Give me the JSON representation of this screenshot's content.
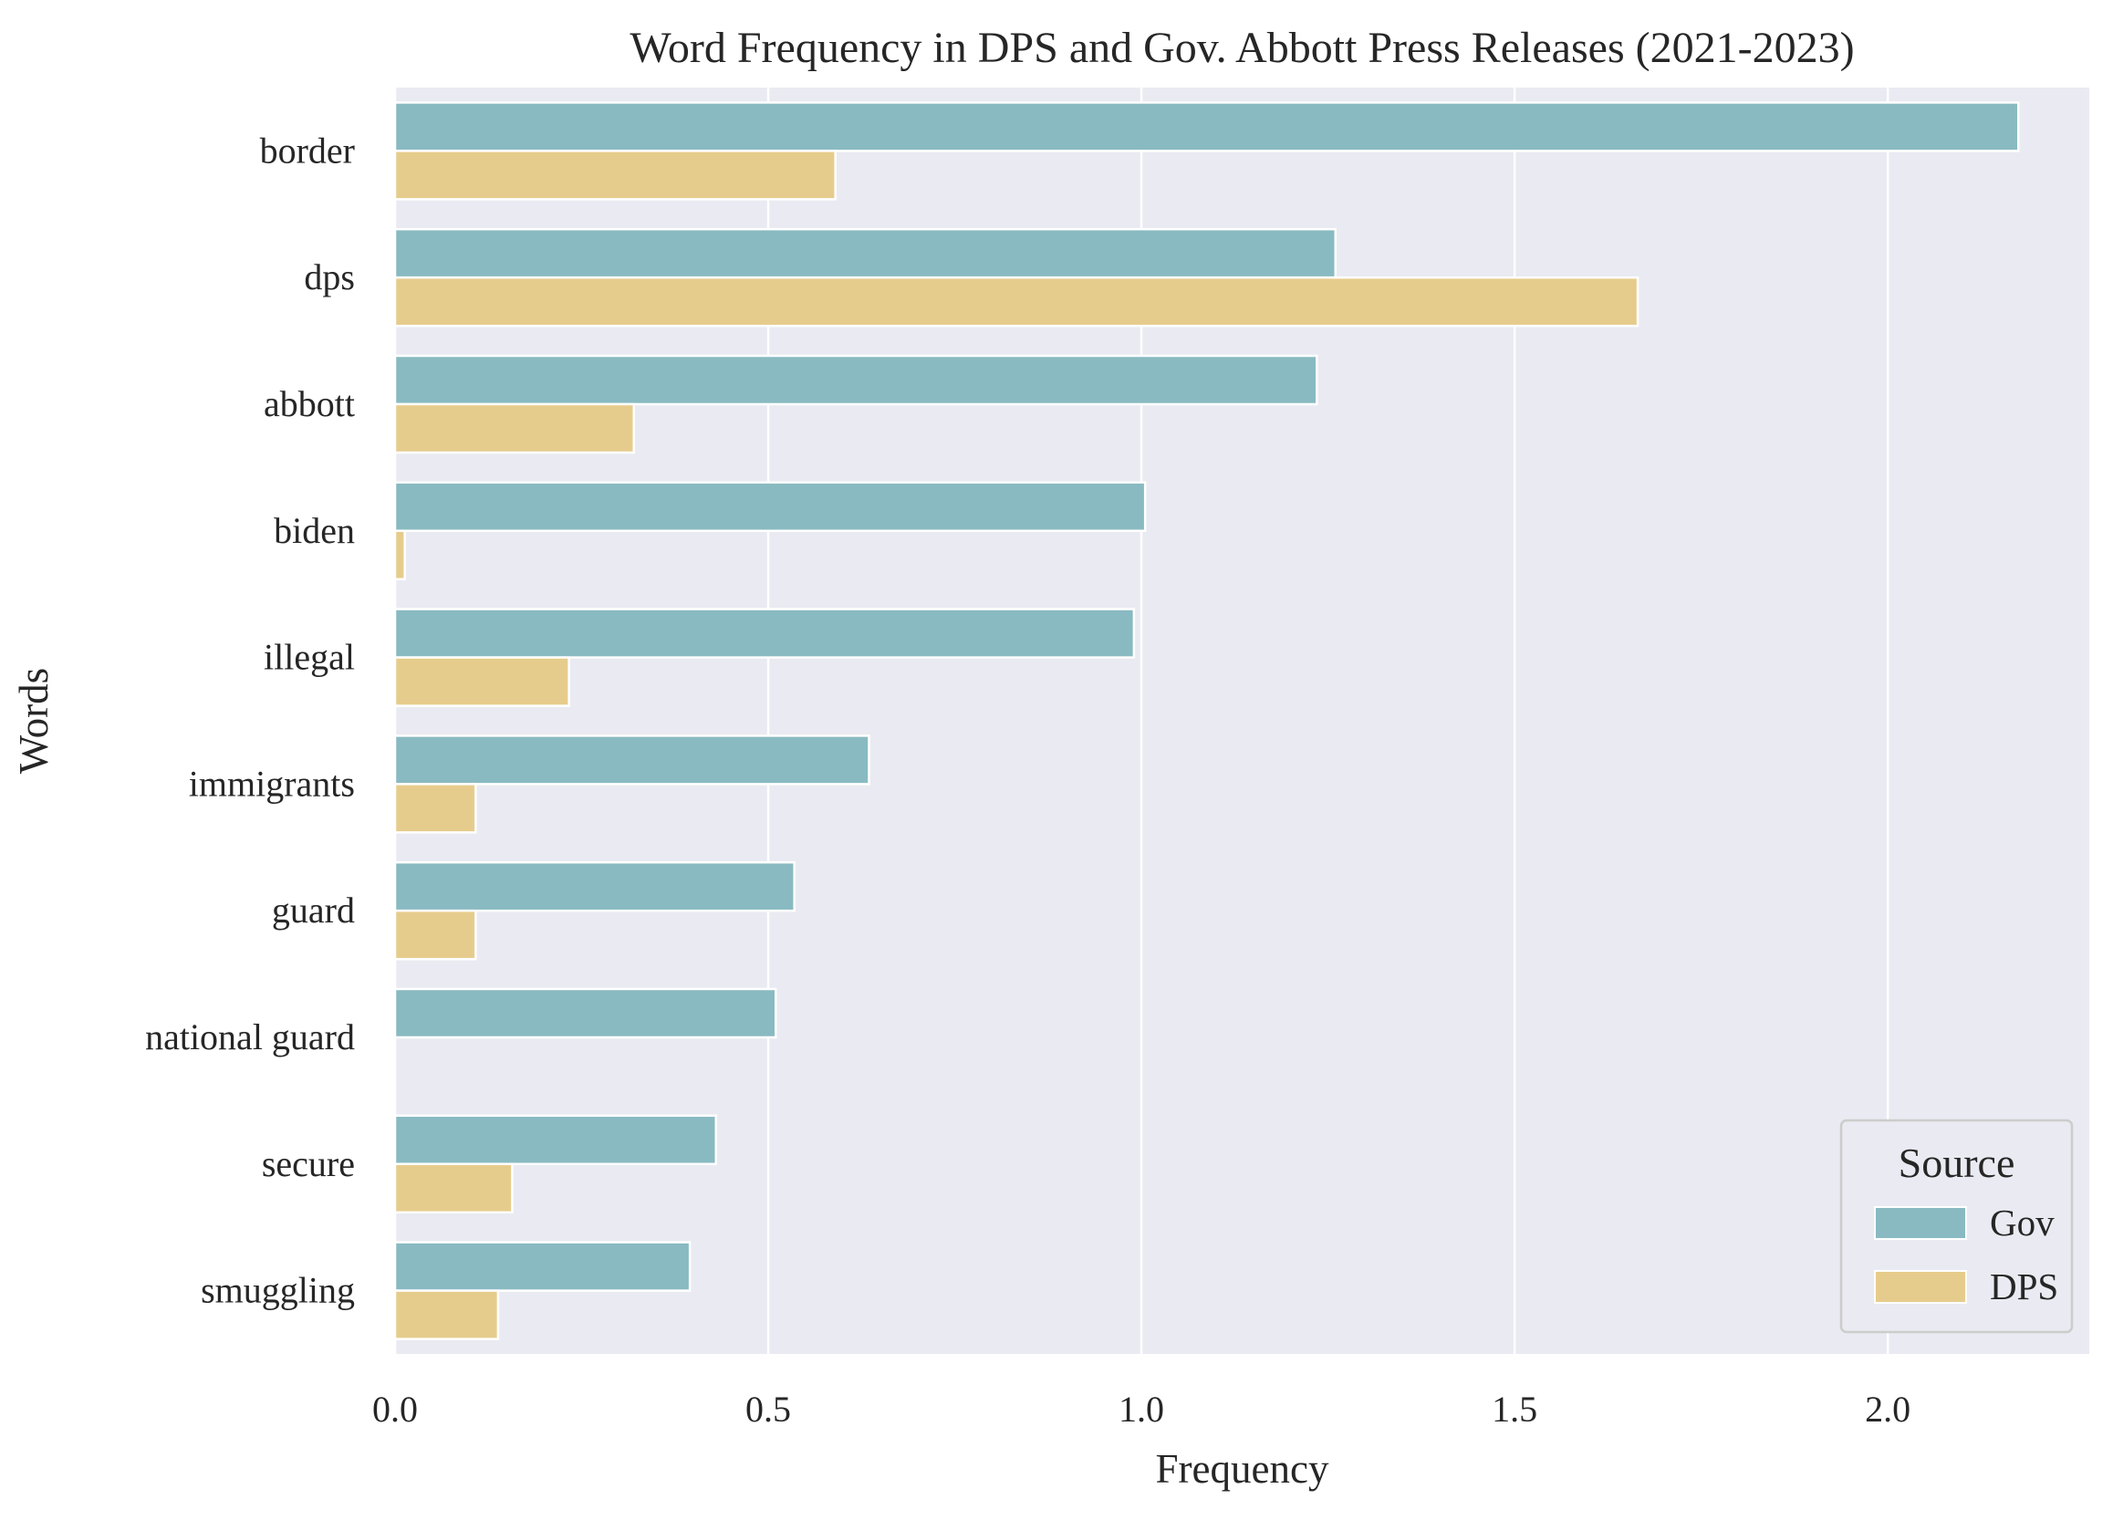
{
  "chart_data": {
    "type": "bar",
    "orientation": "horizontal",
    "title": "Word Frequency in DPS and Gov. Abbott Press Releases (2021-2023)",
    "xlabel": "Frequency",
    "ylabel": "Words",
    "categories": [
      "border",
      "dps",
      "abbott",
      "biden",
      "illegal",
      "immigrants",
      "guard",
      "national guard",
      "secure",
      "smuggling"
    ],
    "series": [
      {
        "name": "Gov",
        "color": "#89bac1",
        "values": [
          2.175,
          1.26,
          1.235,
          1.005,
          0.99,
          0.635,
          0.535,
          0.51,
          0.43,
          0.395
        ]
      },
      {
        "name": "DPS",
        "color": "#e6cc8c",
        "values": [
          0.59,
          1.665,
          0.32,
          0.013,
          0.233,
          0.108,
          0.108,
          0.0,
          0.157,
          0.138
        ]
      }
    ],
    "xlim": [
      0,
      2.27
    ],
    "xticks": [
      {
        "value": 0.0,
        "label": "0.0"
      },
      {
        "value": 0.5,
        "label": "0.5"
      },
      {
        "value": 1.0,
        "label": "1.0"
      },
      {
        "value": 1.5,
        "label": "1.5"
      },
      {
        "value": 2.0,
        "label": "2.0"
      }
    ],
    "legend": {
      "title": "Source",
      "placement": "bottom-right"
    },
    "grid": true,
    "plot_background": "#eaeaf2",
    "grid_color": "#ffffff"
  }
}
